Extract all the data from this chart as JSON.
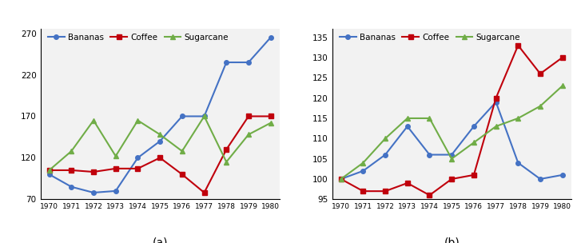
{
  "years": [
    1970,
    1971,
    1972,
    1973,
    1974,
    1975,
    1976,
    1977,
    1978,
    1979,
    1980
  ],
  "panel_a": {
    "title": "(a)",
    "ylim": [
      70,
      275
    ],
    "yticks": [
      70,
      120,
      170,
      220,
      270
    ],
    "bananas": [
      100,
      85,
      78,
      80,
      120,
      140,
      170,
      170,
      235,
      235,
      265
    ],
    "coffee": [
      105,
      105,
      103,
      107,
      107,
      120,
      100,
      78,
      130,
      170,
      170
    ],
    "sugarcane": [
      105,
      128,
      165,
      122,
      165,
      148,
      128,
      170,
      115,
      148,
      162
    ]
  },
  "panel_b": {
    "title": "(b)",
    "ylim": [
      95,
      137
    ],
    "yticks": [
      95,
      100,
      105,
      110,
      115,
      120,
      125,
      130,
      135
    ],
    "bananas": [
      100,
      102,
      106,
      113,
      106,
      106,
      113,
      119,
      104,
      100,
      101
    ],
    "coffee": [
      100,
      97,
      97,
      99,
      96,
      100,
      101,
      120,
      133,
      126,
      130
    ],
    "sugarcane": [
      100,
      104,
      110,
      115,
      115,
      105,
      109,
      113,
      115,
      118,
      123
    ]
  },
  "bananas_color": "#4472C4",
  "coffee_color": "#C0000C",
  "sugarcane_color": "#70AD47",
  "legend_labels": [
    "Bananas",
    "Coffee",
    "Sugarcane"
  ],
  "xtick_fontsize": 6.5,
  "ytick_fontsize": 7.5,
  "legend_fontsize": 7.5,
  "label_fontsize": 10,
  "background_color": "#F2F2F2"
}
